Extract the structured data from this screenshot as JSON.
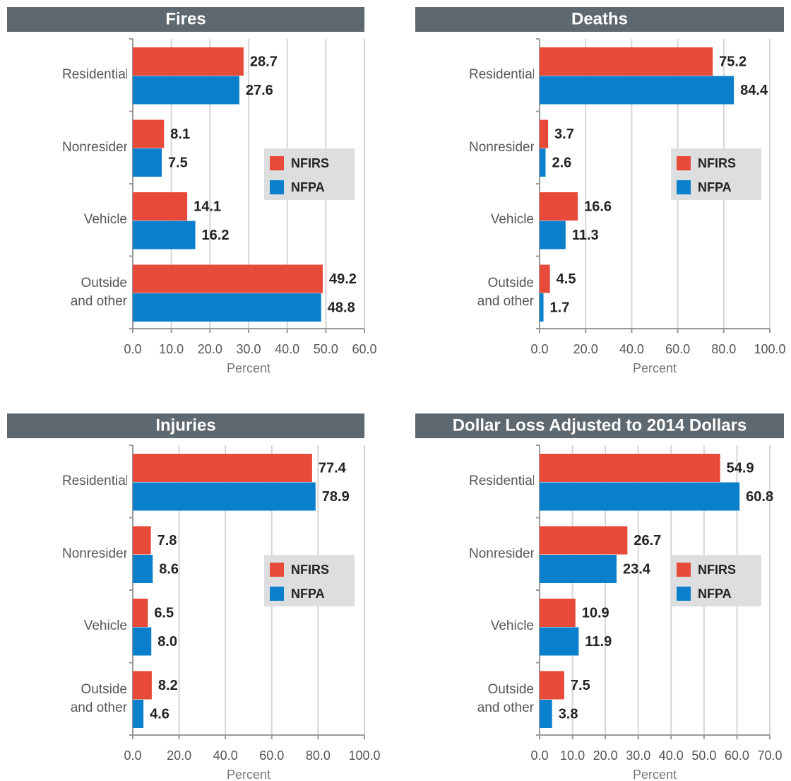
{
  "chart_data": [
    {
      "type": "bar",
      "title": "Fires",
      "xlabel": "Percent",
      "categories": [
        "Residential",
        "Nonresidential",
        "Vehicle",
        "Outside and other"
      ],
      "series": [
        {
          "name": "NFIRS",
          "color": "#e84a3a",
          "values": [
            28.7,
            8.1,
            14.1,
            49.2
          ]
        },
        {
          "name": "NFPA",
          "color": "#0a7fcc",
          "values": [
            27.6,
            7.5,
            16.2,
            48.8
          ]
        }
      ],
      "xlim": [
        0,
        60
      ],
      "xticks": [
        {
          "value": 0,
          "label": "0.0"
        },
        {
          "value": 10,
          "label": "10.0"
        },
        {
          "value": 20,
          "label": "20.0"
        },
        {
          "value": 30,
          "label": "30.0"
        },
        {
          "value": 40,
          "label": "40.0"
        },
        {
          "value": 50,
          "label": "50.0"
        },
        {
          "value": 60,
          "label": "60.0"
        }
      ],
      "grid": true
    },
    {
      "type": "bar",
      "title": "Deaths",
      "xlabel": "Percent",
      "categories": [
        "Residential",
        "Nonresidential",
        "Vehicle",
        "Outside and other"
      ],
      "series": [
        {
          "name": "NFIRS",
          "color": "#e84a3a",
          "values": [
            75.2,
            3.7,
            16.6,
            4.5
          ]
        },
        {
          "name": "NFPA",
          "color": "#0a7fcc",
          "values": [
            84.4,
            2.6,
            11.3,
            1.7
          ]
        }
      ],
      "xlim": [
        0,
        100
      ],
      "xticks": [
        {
          "value": 0,
          "label": "0.0"
        },
        {
          "value": 20,
          "label": "20.0"
        },
        {
          "value": 40,
          "label": "40.0"
        },
        {
          "value": 60,
          "label": "60.0"
        },
        {
          "value": 80,
          "label": "80.0"
        },
        {
          "value": 100,
          "label": "100.0"
        }
      ],
      "grid": true
    },
    {
      "type": "bar",
      "title": "Injuries",
      "xlabel": "Percent",
      "categories": [
        "Residential",
        "Nonresidential",
        "Vehicle",
        "Outside and other"
      ],
      "series": [
        {
          "name": "NFIRS",
          "color": "#e84a3a",
          "values": [
            77.4,
            7.8,
            6.5,
            8.2
          ]
        },
        {
          "name": "NFPA",
          "color": "#0a7fcc",
          "values": [
            78.9,
            8.6,
            8,
            4.6
          ],
          "value_labels": [
            "78.9",
            "8.6",
            "8.0",
            "4.6"
          ]
        }
      ],
      "xlim": [
        0,
        100
      ],
      "xticks": [
        {
          "value": 0,
          "label": "0.0"
        },
        {
          "value": 20,
          "label": "20.0"
        },
        {
          "value": 40,
          "label": "40.0"
        },
        {
          "value": 60,
          "label": "60.0"
        },
        {
          "value": 80,
          "label": "80.0"
        },
        {
          "value": 100,
          "label": "100.0"
        }
      ],
      "grid": true
    },
    {
      "type": "bar",
      "title": "Dollar Loss Adjusted to 2014 Dollars",
      "xlabel": "Percent",
      "categories": [
        "Residential",
        "Nonresidential",
        "Vehicle",
        "Outside and other"
      ],
      "series": [
        {
          "name": "NFIRS",
          "color": "#e84a3a",
          "values": [
            54.9,
            26.7,
            10.9,
            7.5
          ]
        },
        {
          "name": "NFPA",
          "color": "#0a7fcc",
          "values": [
            60.8,
            23.4,
            11.9,
            3.8
          ]
        }
      ],
      "xlim": [
        0,
        70
      ],
      "xticks": [
        {
          "value": 0,
          "label": "0.0"
        },
        {
          "value": 10,
          "label": "10.0"
        },
        {
          "value": 20,
          "label": "20.0"
        },
        {
          "value": 30,
          "label": "30.0"
        },
        {
          "value": 40,
          "label": "40.0"
        },
        {
          "value": 50,
          "label": "50.0"
        },
        {
          "value": 60,
          "label": "60.0"
        },
        {
          "value": 70,
          "label": "70.0"
        }
      ],
      "grid": true
    }
  ]
}
